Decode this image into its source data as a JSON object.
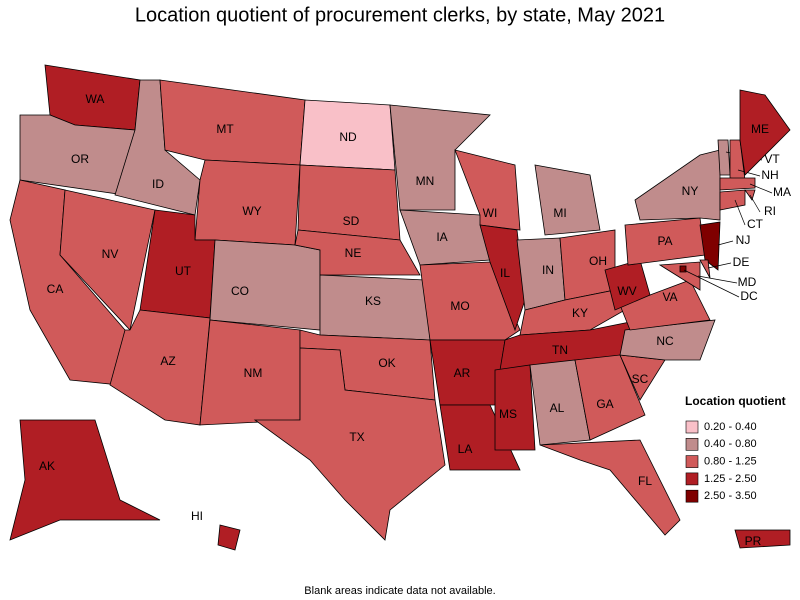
{
  "chart_data": {
    "type": "choropleth",
    "title": "Location quotient of procurement clerks, by state, May 2021",
    "footnote": "Blank areas indicate data not available.",
    "legend": {
      "title": "Location quotient",
      "corner": "bottom-right",
      "items": [
        {
          "label": "0.20 - 0.40",
          "color": "#f9c0c8"
        },
        {
          "label": "0.40 - 0.80",
          "color": "#c08c8c"
        },
        {
          "label": "0.80 - 1.25",
          "color": "#d05a5a"
        },
        {
          "label": "1.25 - 2.50",
          "color": "#b01e24"
        },
        {
          "label": "2.50 - 3.50",
          "color": "#7f0000"
        }
      ]
    },
    "states": [
      {
        "label": "WA",
        "color": "#b01e24"
      },
      {
        "label": "OR",
        "color": "#c08c8c"
      },
      {
        "label": "CA",
        "color": "#d05a5a"
      },
      {
        "label": "NV",
        "color": "#d05a5a"
      },
      {
        "label": "ID",
        "color": "#c08c8c"
      },
      {
        "label": "MT",
        "color": "#d05a5a"
      },
      {
        "label": "WY",
        "color": "#d05a5a"
      },
      {
        "label": "UT",
        "color": "#b01e24"
      },
      {
        "label": "AZ",
        "color": "#d05a5a"
      },
      {
        "label": "CO",
        "color": "#c08c8c"
      },
      {
        "label": "NM",
        "color": "#d05a5a"
      },
      {
        "label": "ND",
        "color": "#f9c0c8"
      },
      {
        "label": "SD",
        "color": "#d05a5a"
      },
      {
        "label": "NE",
        "color": "#d05a5a"
      },
      {
        "label": "KS",
        "color": "#c08c8c"
      },
      {
        "label": "OK",
        "color": "#d05a5a"
      },
      {
        "label": "TX",
        "color": "#d05a5a"
      },
      {
        "label": "MN",
        "color": "#c08c8c"
      },
      {
        "label": "IA",
        "color": "#c08c8c"
      },
      {
        "label": "MO",
        "color": "#d05a5a"
      },
      {
        "label": "AR",
        "color": "#b01e24"
      },
      {
        "label": "LA",
        "color": "#b01e24"
      },
      {
        "label": "WI",
        "color": "#d05a5a"
      },
      {
        "label": "IL",
        "color": "#b01e24"
      },
      {
        "label": "MI",
        "color": "#c08c8c"
      },
      {
        "label": "IN",
        "color": "#c08c8c"
      },
      {
        "label": "OH",
        "color": "#d05a5a"
      },
      {
        "label": "KY",
        "color": "#d05a5a"
      },
      {
        "label": "TN",
        "color": "#b01e24"
      },
      {
        "label": "MS",
        "color": "#b01e24"
      },
      {
        "label": "AL",
        "color": "#c08c8c"
      },
      {
        "label": "GA",
        "color": "#d05a5a"
      },
      {
        "label": "FL",
        "color": "#d05a5a"
      },
      {
        "label": "SC",
        "color": "#d05a5a"
      },
      {
        "label": "NC",
        "color": "#c08c8c"
      },
      {
        "label": "VA",
        "color": "#d05a5a"
      },
      {
        "label": "WV",
        "color": "#b01e24"
      },
      {
        "label": "PA",
        "color": "#d05a5a"
      },
      {
        "label": "NY",
        "color": "#c08c8c"
      },
      {
        "label": "NJ",
        "color": "#7f0000"
      },
      {
        "label": "DE",
        "color": "#d05a5a"
      },
      {
        "label": "MD",
        "color": "#d05a5a"
      },
      {
        "label": "DC",
        "color": "#7f0000"
      },
      {
        "label": "VT",
        "color": "#c08c8c"
      },
      {
        "label": "NH",
        "color": "#d05a5a"
      },
      {
        "label": "MA",
        "color": "#d05a5a"
      },
      {
        "label": "RI",
        "color": "#d05a5a"
      },
      {
        "label": "CT",
        "color": "#d05a5a"
      },
      {
        "label": "ME",
        "color": "#b01e24"
      },
      {
        "label": "AK",
        "color": "#b01e24"
      },
      {
        "label": "HI",
        "color": "#b01e24"
      },
      {
        "label": "PR",
        "color": "#b01e24"
      }
    ]
  }
}
